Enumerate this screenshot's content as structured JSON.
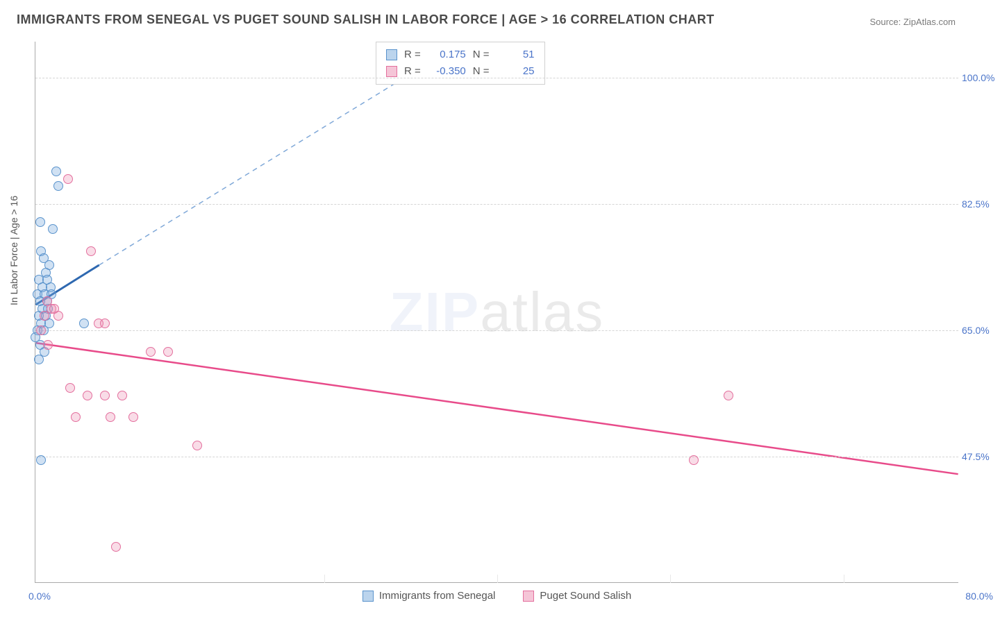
{
  "title": "IMMIGRANTS FROM SENEGAL VS PUGET SOUND SALISH IN LABOR FORCE | AGE > 16 CORRELATION CHART",
  "source": "Source: ZipAtlas.com",
  "ylabel": "In Labor Force | Age > 16",
  "watermark_a": "ZIP",
  "watermark_b": "atlas",
  "chart": {
    "type": "scatter-with-trend",
    "x_min": 0.0,
    "x_max": 80.0,
    "y_min": 30.0,
    "y_max": 105.0,
    "y_gridlines": [
      47.5,
      65.0,
      82.5,
      100.0
    ],
    "y_tick_labels": [
      "47.5%",
      "65.0%",
      "82.5%",
      "100.0%"
    ],
    "x_tick_left": "0.0%",
    "x_tick_right": "80.0%",
    "x_minor_ticks": [
      25,
      40,
      55,
      70
    ],
    "background_color": "#ffffff",
    "grid_color": "#d5d5d5",
    "series": [
      {
        "name": "Immigrants from Senegal",
        "color_fill": "rgba(120,170,220,0.35)",
        "color_stroke": "#5a93cc",
        "trend_color": "#2e68b0",
        "trend_dash_color": "#7fa8d8",
        "R": 0.175,
        "N": 51,
        "trend": {
          "x1": 0,
          "y1": 68.5,
          "x2": 5.5,
          "y2": 74.0
        },
        "trend_dash": [
          {
            "x": 5.5,
            "y": 74.0
          },
          {
            "x": 33,
            "y": 101
          }
        ],
        "points": [
          {
            "x": 1.8,
            "y": 87
          },
          {
            "x": 2.0,
            "y": 85
          },
          {
            "x": 0.4,
            "y": 80
          },
          {
            "x": 1.5,
            "y": 79
          },
          {
            "x": 0.5,
            "y": 76
          },
          {
            "x": 0.7,
            "y": 75
          },
          {
            "x": 1.2,
            "y": 74
          },
          {
            "x": 0.9,
            "y": 73
          },
          {
            "x": 0.3,
            "y": 72
          },
          {
            "x": 1.0,
            "y": 72
          },
          {
            "x": 0.6,
            "y": 71
          },
          {
            "x": 1.3,
            "y": 71
          },
          {
            "x": 0.2,
            "y": 70
          },
          {
            "x": 0.8,
            "y": 70
          },
          {
            "x": 1.4,
            "y": 70
          },
          {
            "x": 0.4,
            "y": 69
          },
          {
            "x": 1.0,
            "y": 69
          },
          {
            "x": 0.6,
            "y": 68
          },
          {
            "x": 1.1,
            "y": 68
          },
          {
            "x": 0.3,
            "y": 67
          },
          {
            "x": 0.9,
            "y": 67
          },
          {
            "x": 4.2,
            "y": 66
          },
          {
            "x": 0.5,
            "y": 66
          },
          {
            "x": 1.2,
            "y": 66
          },
          {
            "x": 0.2,
            "y": 65
          },
          {
            "x": 0.7,
            "y": 65
          },
          {
            "x": 0.0,
            "y": 64
          },
          {
            "x": 0.4,
            "y": 63
          },
          {
            "x": 0.8,
            "y": 62
          },
          {
            "x": 0.3,
            "y": 61
          },
          {
            "x": 0.5,
            "y": 47
          }
        ]
      },
      {
        "name": "Puget Sound Salish",
        "color_fill": "rgba(235,140,175,0.30)",
        "color_stroke": "#e36f9d",
        "trend_color": "#e84b8a",
        "R": -0.35,
        "N": 25,
        "trend": {
          "x1": 0,
          "y1": 63.2,
          "x2": 80,
          "y2": 45.0
        },
        "points": [
          {
            "x": 2.8,
            "y": 86
          },
          {
            "x": 4.8,
            "y": 76
          },
          {
            "x": 1.0,
            "y": 69
          },
          {
            "x": 1.4,
            "y": 68
          },
          {
            "x": 0.8,
            "y": 67
          },
          {
            "x": 1.6,
            "y": 68
          },
          {
            "x": 2.0,
            "y": 67
          },
          {
            "x": 5.5,
            "y": 66
          },
          {
            "x": 6.0,
            "y": 66
          },
          {
            "x": 0.5,
            "y": 65
          },
          {
            "x": 1.1,
            "y": 63
          },
          {
            "x": 10.0,
            "y": 62
          },
          {
            "x": 11.5,
            "y": 62
          },
          {
            "x": 3.0,
            "y": 57
          },
          {
            "x": 4.5,
            "y": 56
          },
          {
            "x": 6.0,
            "y": 56
          },
          {
            "x": 7.5,
            "y": 56
          },
          {
            "x": 3.5,
            "y": 53
          },
          {
            "x": 6.5,
            "y": 53
          },
          {
            "x": 8.5,
            "y": 53
          },
          {
            "x": 14.0,
            "y": 49
          },
          {
            "x": 60.0,
            "y": 56
          },
          {
            "x": 57.0,
            "y": 47
          },
          {
            "x": 7.0,
            "y": 35
          }
        ]
      }
    ]
  },
  "stats_box": {
    "rows": [
      {
        "swatch": "blue",
        "R_label": "R =",
        "R": "0.175",
        "N_label": "N =",
        "N": "51"
      },
      {
        "swatch": "pink",
        "R_label": "R =",
        "R": "-0.350",
        "N_label": "N =",
        "N": "25"
      }
    ]
  },
  "legend": {
    "items": [
      {
        "swatch": "blue",
        "label": "Immigrants from Senegal"
      },
      {
        "swatch": "pink",
        "label": "Puget Sound Salish"
      }
    ]
  }
}
